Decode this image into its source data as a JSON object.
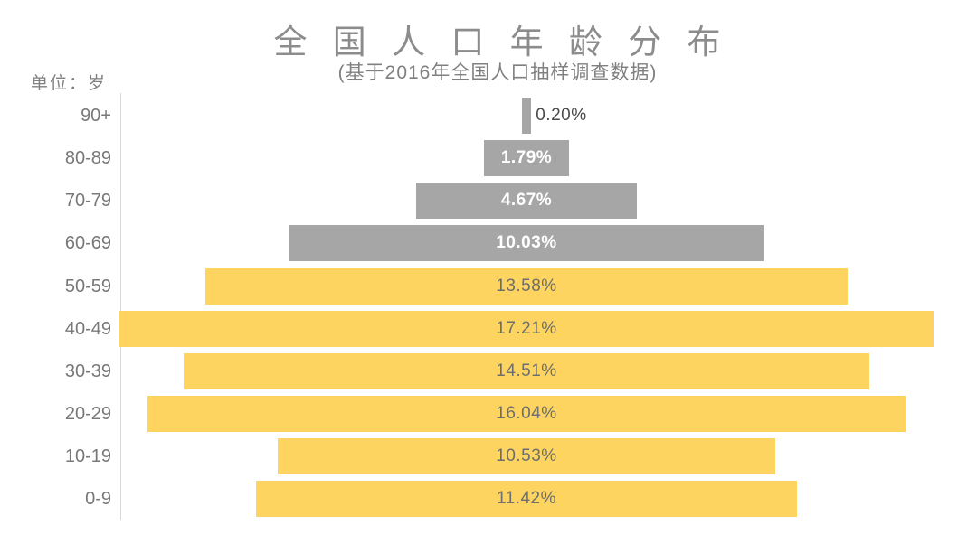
{
  "page": {
    "background": "#ffffff"
  },
  "chart_data": {
    "type": "bar",
    "variant": "horizontal-centered-pyramid",
    "title": "全 国 人 口 年 龄 分 布",
    "subtitle": "(基于2016年全国人口抽样调查数据)",
    "unit_label": "单位：岁",
    "categories": [
      "90+",
      "80-89",
      "70-79",
      "60-69",
      "50-59",
      "40-49",
      "30-39",
      "20-29",
      "10-19",
      "0-9"
    ],
    "values": [
      0.2,
      1.79,
      4.67,
      10.03,
      13.58,
      17.21,
      14.51,
      16.04,
      10.53,
      11.42
    ],
    "value_labels": [
      "0.20%",
      "1.79%",
      "4.67%",
      "10.03%",
      "13.58%",
      "17.21%",
      "14.51%",
      "16.04%",
      "10.53%",
      "11.42%"
    ],
    "rows": [
      {
        "age": "90+",
        "value": 0.2,
        "label": "0.20%",
        "color": "#a6a6a6",
        "label_style": "outside-dark"
      },
      {
        "age": "80-89",
        "value": 1.79,
        "label": "1.79%",
        "color": "#a6a6a6",
        "label_style": "inside-white"
      },
      {
        "age": "70-79",
        "value": 4.67,
        "label": "4.67%",
        "color": "#a6a6a6",
        "label_style": "inside-white"
      },
      {
        "age": "60-69",
        "value": 10.03,
        "label": "10.03%",
        "color": "#a6a6a6",
        "label_style": "inside-white"
      },
      {
        "age": "50-59",
        "value": 13.58,
        "label": "13.58%",
        "color": "#fcd45f",
        "label_style": "inside-gray"
      },
      {
        "age": "40-49",
        "value": 17.21,
        "label": "17.21%",
        "color": "#fcd45f",
        "label_style": "inside-gray"
      },
      {
        "age": "30-39",
        "value": 14.51,
        "label": "14.51%",
        "color": "#fcd45f",
        "label_style": "inside-gray"
      },
      {
        "age": "20-29",
        "value": 16.04,
        "label": "16.04%",
        "color": "#fcd45f",
        "label_style": "inside-gray"
      },
      {
        "age": "10-19",
        "value": 10.53,
        "label": "10.53%",
        "color": "#fcd45f",
        "label_style": "inside-gray"
      },
      {
        "age": "0-9",
        "value": 11.42,
        "label": "11.42%",
        "color": "#fcd45f",
        "label_style": "inside-gray"
      }
    ],
    "colors": {
      "senior_bar": "#a6a6a6",
      "adult_bar": "#fcd45f",
      "axis_line": "#d9d9d9",
      "title_text": "#8c8c8c",
      "subtitle_text": "#808080",
      "age_label_text": "#787878",
      "value_text_on_yellow": "#6e6e6e",
      "value_text_on_gray": "#ffffff",
      "value_text_outside": "#4a4a4a"
    },
    "axis": {
      "value_max_percent": 17.21,
      "gridlines": false,
      "legend": false
    }
  }
}
